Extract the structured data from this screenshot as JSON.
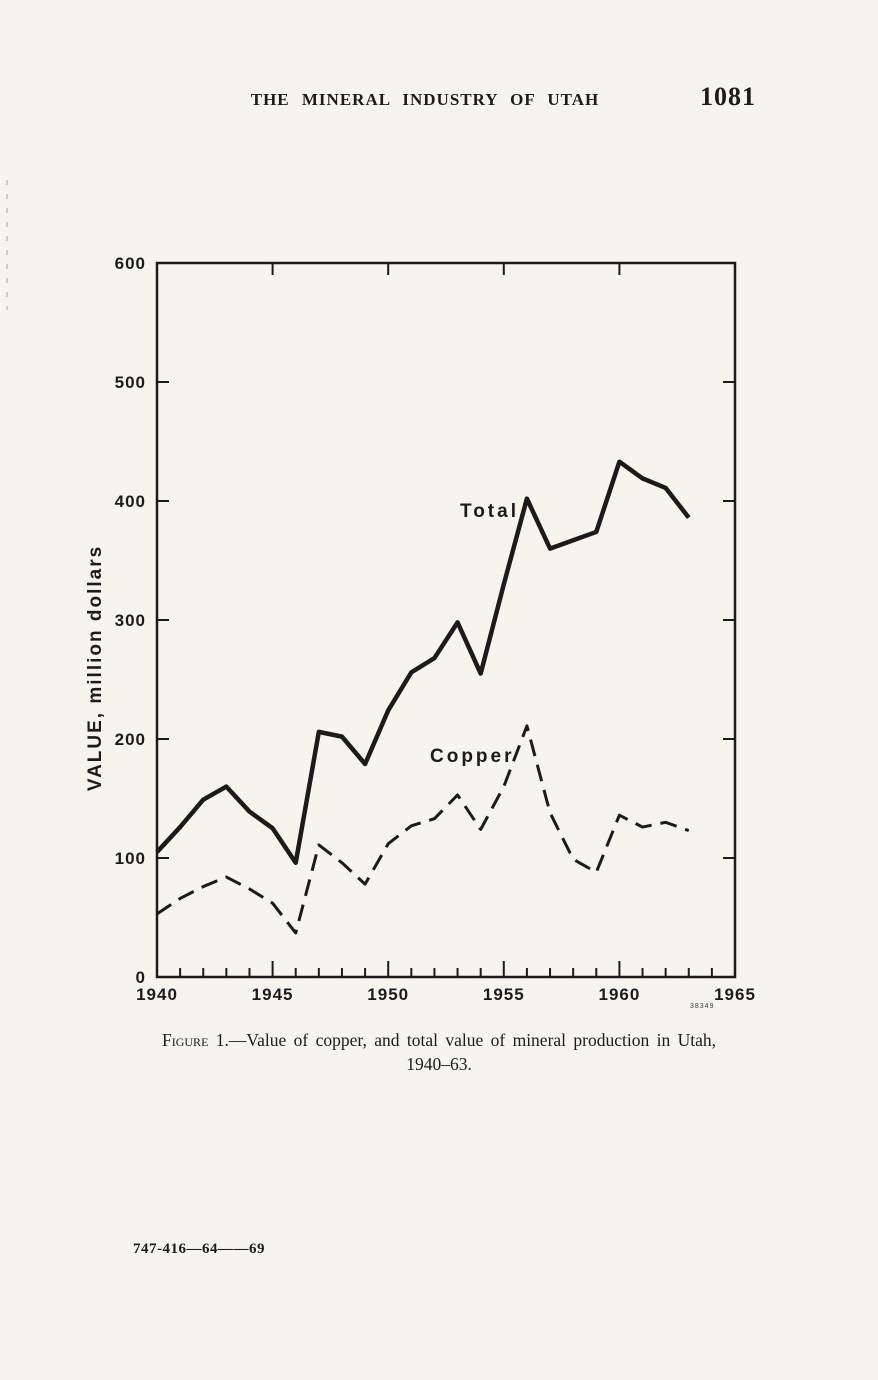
{
  "page": {
    "header": {
      "title": "THE MINERAL INDUSTRY OF UTAH",
      "page_number": "1081"
    },
    "caption": {
      "label": "Figure 1.",
      "text": "—Value of copper, and total value of mineral production in Utah,",
      "line2": "1940–63."
    },
    "plate_number": "38349",
    "footer": "747-416—64——69"
  },
  "chart_data": {
    "type": "line",
    "title": "",
    "xlabel": "",
    "ylabel": "VALUE, million dollars",
    "xlim": [
      1940,
      1965
    ],
    "ylim": [
      0,
      600
    ],
    "x_major_ticks": [
      1940,
      1945,
      1950,
      1955,
      1960,
      1965
    ],
    "y_ticks": [
      0,
      100,
      200,
      300,
      400,
      500,
      600
    ],
    "grid": false,
    "legend_position": "inline-labels",
    "x": [
      1940,
      1941,
      1942,
      1943,
      1944,
      1945,
      1946,
      1947,
      1948,
      1949,
      1950,
      1951,
      1952,
      1953,
      1954,
      1955,
      1956,
      1957,
      1958,
      1959,
      1960,
      1961,
      1962,
      1963
    ],
    "series": [
      {
        "name": "Total",
        "style": "solid",
        "values": [
          105,
          126,
          149,
          160,
          139,
          125,
          96,
          206,
          202,
          179,
          224,
          256,
          268,
          298,
          255,
          330,
          402,
          360,
          367,
          374,
          433,
          419,
          411,
          386
        ]
      },
      {
        "name": "Copper",
        "style": "dashed",
        "values": [
          53,
          66,
          76,
          84,
          74,
          62,
          37,
          111,
          96,
          78,
          112,
          127,
          133,
          153,
          124,
          160,
          211,
          138,
          99,
          88,
          136,
          126,
          130,
          123
        ]
      }
    ]
  }
}
